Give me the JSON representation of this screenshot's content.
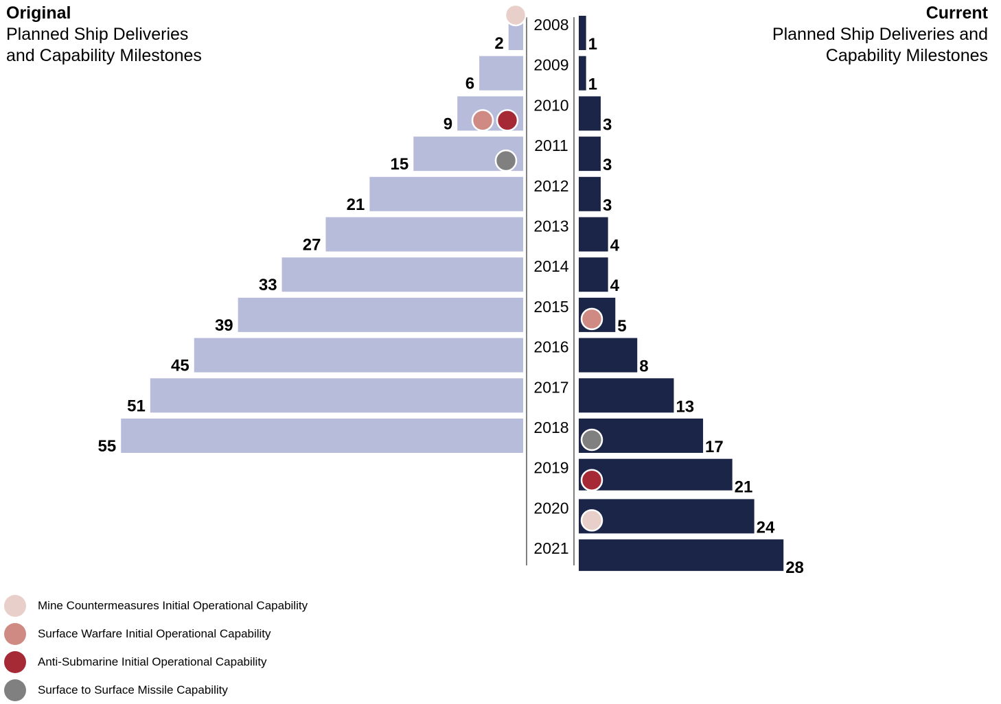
{
  "left_title": {
    "bold": "Original",
    "line1": "Planned Ship Deliveries",
    "line2": "and Capability Milestones"
  },
  "right_title": {
    "bold": "Current",
    "line1": "Planned Ship Deliveries and",
    "line2": "Capability Milestones"
  },
  "colors": {
    "original_bar": "#b8bcdb",
    "current_bar": "#1b2547",
    "axis": "#555555"
  },
  "chart_data": {
    "type": "bar",
    "categories": [
      "2008",
      "2009",
      "2010",
      "2011",
      "2012",
      "2013",
      "2014",
      "2015",
      "2016",
      "2017",
      "2018",
      "2019",
      "2020",
      "2021"
    ],
    "series": [
      {
        "name": "Original",
        "values": [
          2,
          6,
          9,
          15,
          21,
          27,
          33,
          39,
          45,
          51,
          55,
          null,
          null,
          null
        ]
      },
      {
        "name": "Current",
        "values": [
          1,
          1,
          3,
          3,
          3,
          4,
          4,
          5,
          8,
          13,
          17,
          21,
          24,
          28
        ]
      }
    ],
    "milestones": [
      {
        "side": "Original",
        "year": "2008",
        "type": "mcm"
      },
      {
        "side": "Original",
        "year": "2010",
        "type": "suw"
      },
      {
        "side": "Original",
        "year": "2010",
        "type": "asw"
      },
      {
        "side": "Original",
        "year": "2011",
        "type": "ssm"
      },
      {
        "side": "Current",
        "year": "2015",
        "type": "suw"
      },
      {
        "side": "Current",
        "year": "2018",
        "type": "ssm"
      },
      {
        "side": "Current",
        "year": "2019",
        "type": "asw"
      },
      {
        "side": "Current",
        "year": "2020",
        "type": "mcm"
      }
    ]
  },
  "legend": [
    {
      "key": "mcm",
      "label": "Mine Countermeasures Initial Operational Capability",
      "color": "#e9cfca"
    },
    {
      "key": "suw",
      "label": "Surface Warfare Initial Operational Capability",
      "color": "#cf8a84"
    },
    {
      "key": "asw",
      "label": "Anti-Submarine Initial Operational Capability",
      "color": "#a52a35"
    },
    {
      "key": "ssm",
      "label": "Surface to Surface Missile Capability",
      "color": "#808080"
    }
  ]
}
